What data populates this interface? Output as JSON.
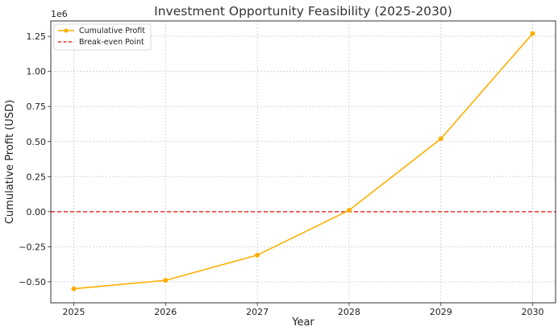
{
  "chart_data": {
    "type": "line",
    "title": "Investment Opportunity Feasibility (2025-2030)",
    "xlabel": "Year",
    "ylabel": "Cumulative Profit (USD)",
    "y_offset_label": "1e6",
    "x": [
      2025,
      2026,
      2027,
      2028,
      2029,
      2030
    ],
    "x_tick_labels": [
      "2025",
      "2026",
      "2027",
      "2028",
      "2029",
      "2030"
    ],
    "xlim": [
      2024.75,
      2030.25
    ],
    "ylim": [
      -650000,
      1360000
    ],
    "y_ticks": [
      -500000,
      -250000,
      0,
      250000,
      500000,
      750000,
      1000000,
      1250000
    ],
    "y_tick_labels": [
      "−0.50",
      "−0.25",
      "0.00",
      "0.25",
      "0.50",
      "0.75",
      "1.00",
      "1.25"
    ],
    "grid": true,
    "legend_position": "top-left",
    "series": [
      {
        "name": "Cumulative Profit",
        "color": "#ffae00",
        "marker": "circle",
        "values": [
          -550000,
          -490000,
          -310000,
          10000,
          520000,
          1270000
        ]
      }
    ],
    "reference_lines": [
      {
        "name": "Break-even Point",
        "y": 0,
        "color": "#e8362b",
        "style": "dashed"
      }
    ]
  }
}
